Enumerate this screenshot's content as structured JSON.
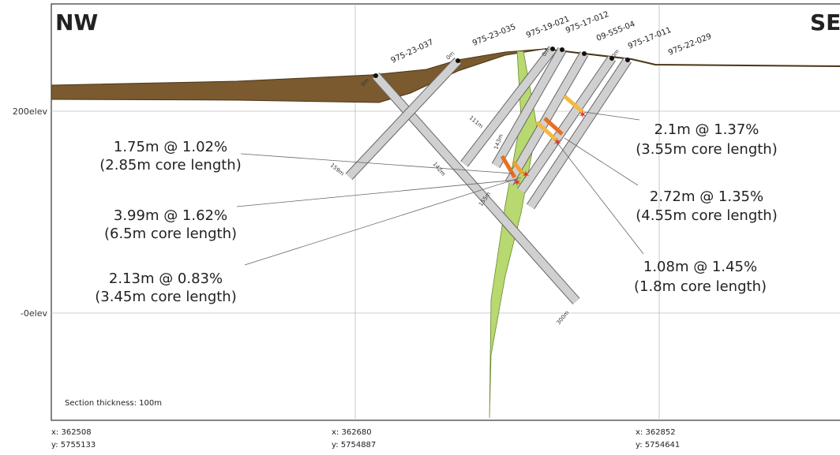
{
  "header": {
    "left": "NW",
    "right": "SE"
  },
  "elevation_labels": [
    "200elev",
    "-0elev"
  ],
  "coordinates": [
    {
      "x": "x: 362508",
      "y": "y: 5755133"
    },
    {
      "x": "x: 362680",
      "y": "y: 5754887"
    },
    {
      "x": "x: 362852",
      "y": "y: 5754641"
    }
  ],
  "drill_holes": [
    "975-23-037",
    "975-23-035",
    "975-19-021",
    "975-17-012",
    "09-555-04",
    "975-17-011",
    "975-22-029"
  ],
  "depth_labels": [
    "0m",
    "0m",
    "0m",
    "0m",
    "159m",
    "111m",
    "143m",
    "142m",
    "155m",
    "300m"
  ],
  "intercepts": [
    {
      "grade": "1.75m @ 1.02%",
      "core": "(2.85m core length)"
    },
    {
      "grade": "3.99m @ 1.62%",
      "core": "(6.5m core length)"
    },
    {
      "grade": "2.13m @ 0.83%",
      "core": "(3.45m core length)"
    },
    {
      "grade": "2.1m @ 1.37%",
      "core": "(3.55m core length)"
    },
    {
      "grade": "2.72m @ 1.35%",
      "core": "(4.55m core length)"
    },
    {
      "grade": "1.08m @ 1.45%",
      "core": "(1.8m core length)"
    }
  ],
  "footnote": "Section thickness: 100m"
}
